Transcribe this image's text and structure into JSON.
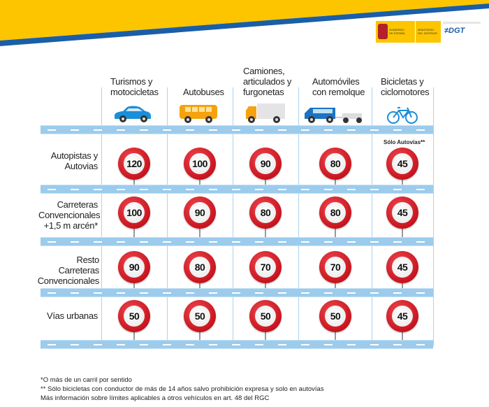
{
  "header": {
    "logo_text": [
      "GOBIERNO DE ESPAÑA",
      "MINISTERIO DEL INTERIOR",
      "DGT"
    ],
    "colors": {
      "yellow": "#fcc500",
      "blue": "#1a5ea8"
    }
  },
  "columns": [
    {
      "label": "Turismos y motocicletas",
      "icon": "car-icon"
    },
    {
      "label": "Autobuses",
      "icon": "bus-icon"
    },
    {
      "label": "Camiones, articulados y furgonetas",
      "icon": "truck-icon"
    },
    {
      "label": "Automóviles con remolque",
      "icon": "car-trailer-icon"
    },
    {
      "label": "Bicicletas y ciclomotores",
      "icon": "bicycle-icon"
    }
  ],
  "rows": [
    {
      "label": "Autopistas y Autovias",
      "limits": [
        "120",
        "100",
        "90",
        "80",
        "45"
      ],
      "note": "Sólo Autovías**"
    },
    {
      "label": "Carreteras Convencionales +1,5 m arcén*",
      "limits": [
        "100",
        "90",
        "80",
        "80",
        "45"
      ]
    },
    {
      "label": "Resto Carreteras Convencionales",
      "limits": [
        "90",
        "80",
        "70",
        "70",
        "45"
      ]
    },
    {
      "label": "Vías urbanas",
      "limits": [
        "50",
        "50",
        "50",
        "50",
        "45"
      ]
    }
  ],
  "footnotes": [
    "*O más de un carril por sentido",
    "** Sólo bicicletas con conductor de más de 14 años salvo prohibición expresa y solo en autovías",
    "Más información sobre límites aplicables a otros vehículos en art. 48 del RGC"
  ]
}
